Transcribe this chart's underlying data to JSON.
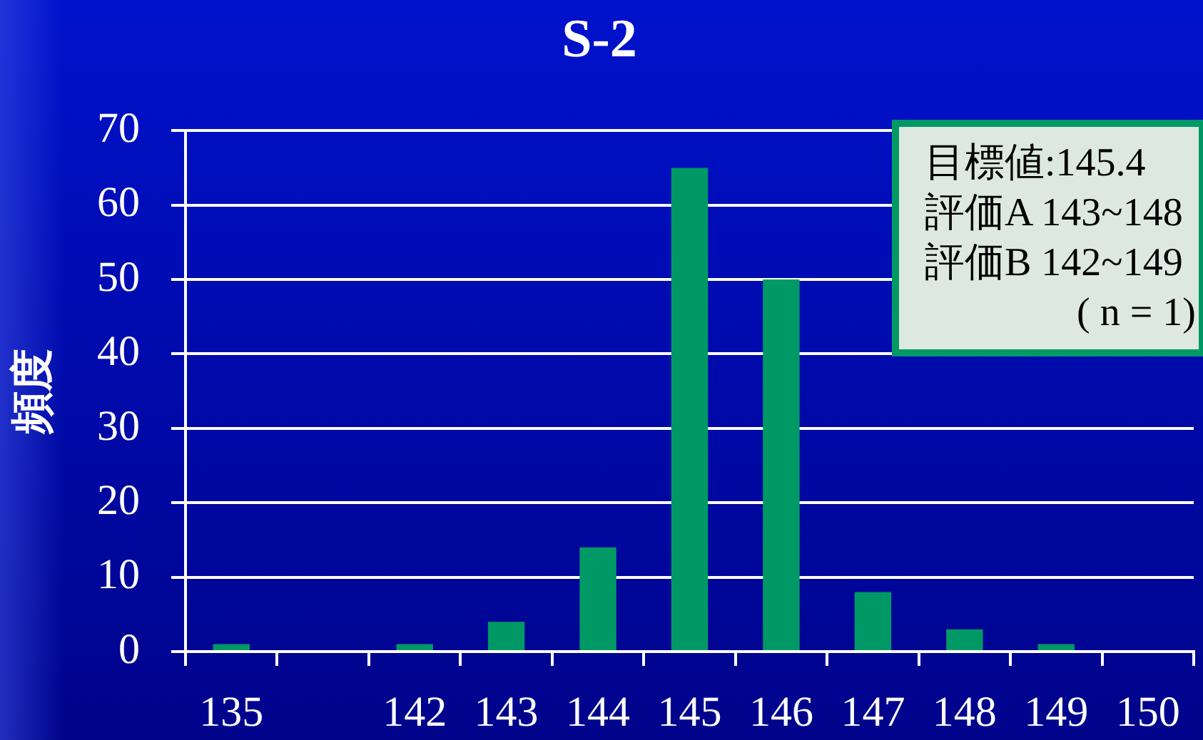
{
  "chart_data": {
    "type": "bar",
    "title": "S-2",
    "ylabel": "頻度",
    "categories": [
      "135",
      null,
      "142",
      "143",
      "144",
      "145",
      "146",
      "147",
      "148",
      "149",
      "150"
    ],
    "values": [
      1,
      0,
      1,
      4,
      14,
      65,
      50,
      8,
      3,
      1,
      0
    ],
    "color": "#009966",
    "ylim": [
      0,
      70
    ],
    "yticks": [
      0,
      10,
      20,
      30,
      40,
      50,
      60,
      70
    ],
    "grid": "y",
    "annotations": [
      "目標値:145.4",
      "評価A 143~148",
      "評価B 142~149",
      "( n = 1)"
    ]
  }
}
